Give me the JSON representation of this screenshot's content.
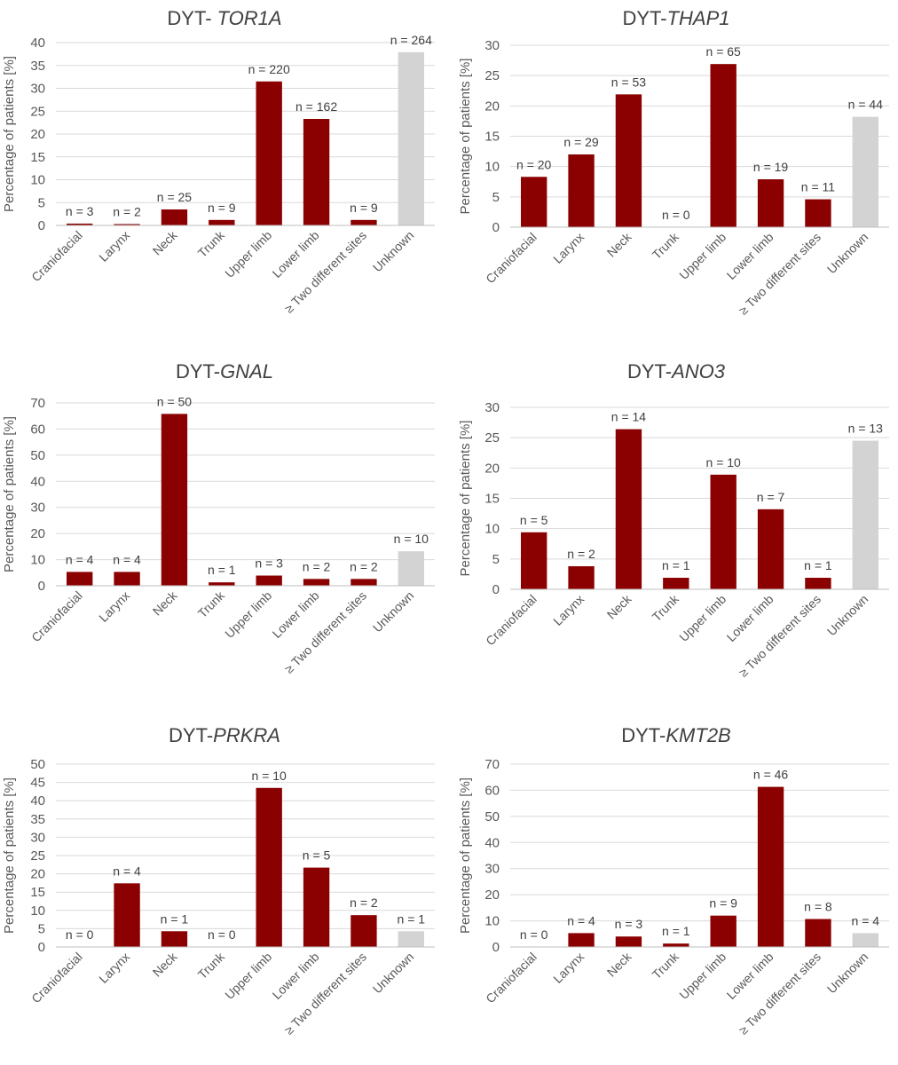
{
  "colors": {
    "bar_main": "#8b0000",
    "bar_unknown": "#d3d3d3"
  },
  "chart_data": [
    {
      "type": "bar",
      "title_prefix": "DYT- ",
      "title_gene": "TOR1A",
      "ylabel": "Percentage of patients [%]",
      "ylim": [
        0,
        40
      ],
      "ytick_step": 5,
      "categories": [
        "Craniofacial",
        "Larynx",
        "Neck",
        "Trunk",
        "Upper limb",
        "Lower limb",
        "≥ Two different sites",
        "Unknown"
      ],
      "values": [
        0.4,
        0.3,
        3.5,
        1.2,
        31.5,
        23.3,
        1.2,
        37.9
      ],
      "labels": [
        "n = 3",
        "n = 2",
        "n = 25",
        "n = 9",
        "n = 220",
        "n = 162",
        "n = 9",
        "n = 264"
      ]
    },
    {
      "type": "bar",
      "title_prefix": "DYT-",
      "title_gene": "THAP1",
      "ylabel": "Percentage of patients [%]",
      "ylim": [
        0,
        30
      ],
      "ytick_step": 5,
      "categories": [
        "Craniofacial",
        "Larynx",
        "Neck",
        "Trunk",
        "Upper limb",
        "Lower limb",
        "≥ Two different sites",
        "Unknown"
      ],
      "values": [
        8.3,
        12.0,
        21.9,
        0,
        26.9,
        7.9,
        4.6,
        18.2
      ],
      "labels": [
        "n = 20",
        "n = 29",
        "n = 53",
        "n = 0",
        "n = 65",
        "n = 19",
        "n = 11",
        "n = 44"
      ]
    },
    {
      "type": "bar",
      "title_prefix": "DYT-",
      "title_gene": "GNAL",
      "ylabel": "Percentage of patients [%]",
      "ylim": [
        0,
        70
      ],
      "ytick_step": 10,
      "categories": [
        "Craniofacial",
        "Larynx",
        "Neck",
        "Trunk",
        "Upper limb",
        "Lower limb",
        "≥ Two different sites",
        "Unknown"
      ],
      "values": [
        5.3,
        5.3,
        65.8,
        1.3,
        3.9,
        2.6,
        2.6,
        13.2
      ],
      "labels": [
        "n = 4",
        "n = 4",
        "n = 50",
        "n = 1",
        "n = 3",
        "n = 2",
        "n = 2",
        "n = 10"
      ]
    },
    {
      "type": "bar",
      "title_prefix": "DYT-",
      "title_gene": "ANO3",
      "ylabel": "Percentage of patients [%]",
      "ylim": [
        0,
        30
      ],
      "ytick_step": 5,
      "categories": [
        "Craniofacial",
        "Larynx",
        "Neck",
        "Trunk",
        "Upper limb",
        "Lower limb",
        "≥ Two different sites",
        "Unknown"
      ],
      "values": [
        9.4,
        3.8,
        26.4,
        1.9,
        18.9,
        13.2,
        1.9,
        24.5
      ],
      "labels": [
        "n = 5",
        "n = 2",
        "n = 14",
        "n = 1",
        "n = 10",
        "n = 7",
        "n = 1",
        "n = 13"
      ]
    },
    {
      "type": "bar",
      "title_prefix": "DYT-",
      "title_gene": "PRKRA",
      "ylabel": "Percentage of patients [%]",
      "ylim": [
        0,
        50
      ],
      "ytick_step": 5,
      "categories": [
        "Craniofacial",
        "Larynx",
        "Neck",
        "Trunk",
        "Upper limb",
        "Lower limb",
        "≥ Two different sites",
        "Unknown"
      ],
      "values": [
        0,
        17.4,
        4.3,
        0,
        43.5,
        21.7,
        8.7,
        4.3
      ],
      "labels": [
        "n = 0",
        "n = 4",
        "n = 1",
        "n = 0",
        "n = 10",
        "n = 5",
        "n = 2",
        "n = 1"
      ]
    },
    {
      "type": "bar",
      "title_prefix": "DYT-",
      "title_gene": "KMT2B",
      "ylabel": "Percentage of patients [%]",
      "ylim": [
        0,
        70
      ],
      "ytick_step": 10,
      "categories": [
        "Craniofacial",
        "Larynx",
        "Neck",
        "Trunk",
        "Upper limb",
        "Lower limb",
        "≥ Two different sites",
        "Unknown"
      ],
      "values": [
        0,
        5.3,
        4.0,
        1.3,
        12.0,
        61.3,
        10.7,
        5.3
      ],
      "labels": [
        "n = 0",
        "n = 4",
        "n = 3",
        "n = 1",
        "n = 9",
        "n = 46",
        "n = 8",
        "n = 4"
      ]
    }
  ]
}
